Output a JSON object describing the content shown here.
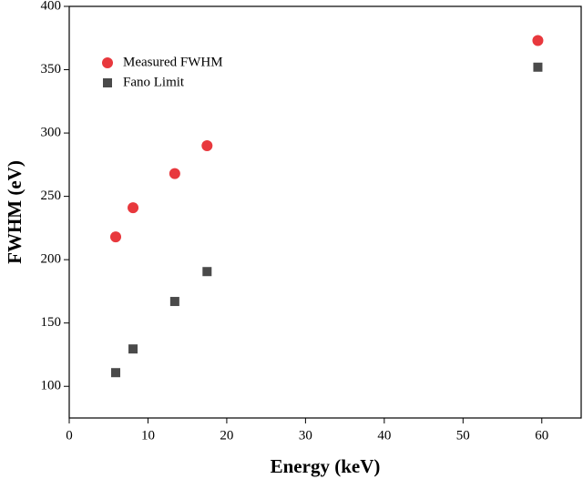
{
  "chart_data": {
    "type": "scatter",
    "x_label": "Energy (keV)",
    "y_label": "FWHM (eV)",
    "xlim": [
      0,
      65
    ],
    "xticks": [
      0,
      10,
      20,
      30,
      40,
      50,
      60
    ],
    "ylim": [
      75,
      400
    ],
    "yticks": [
      100,
      150,
      200,
      250,
      300,
      350,
      400
    ],
    "legend": "upper left",
    "series": [
      {
        "name": "Measured FWHM",
        "color": "#e8383d",
        "marker": "circle",
        "x": [
          5.9,
          8.1,
          13.4,
          17.5,
          59.5
        ],
        "values": [
          218,
          241,
          268,
          290,
          373
        ]
      },
      {
        "name": "Fano Limit",
        "color": "#4a4a4a",
        "marker": "square",
        "x": [
          5.9,
          8.1,
          13.4,
          17.5,
          59.5
        ],
        "values": [
          110.8,
          129.5,
          167,
          190.6,
          352
        ]
      }
    ]
  }
}
